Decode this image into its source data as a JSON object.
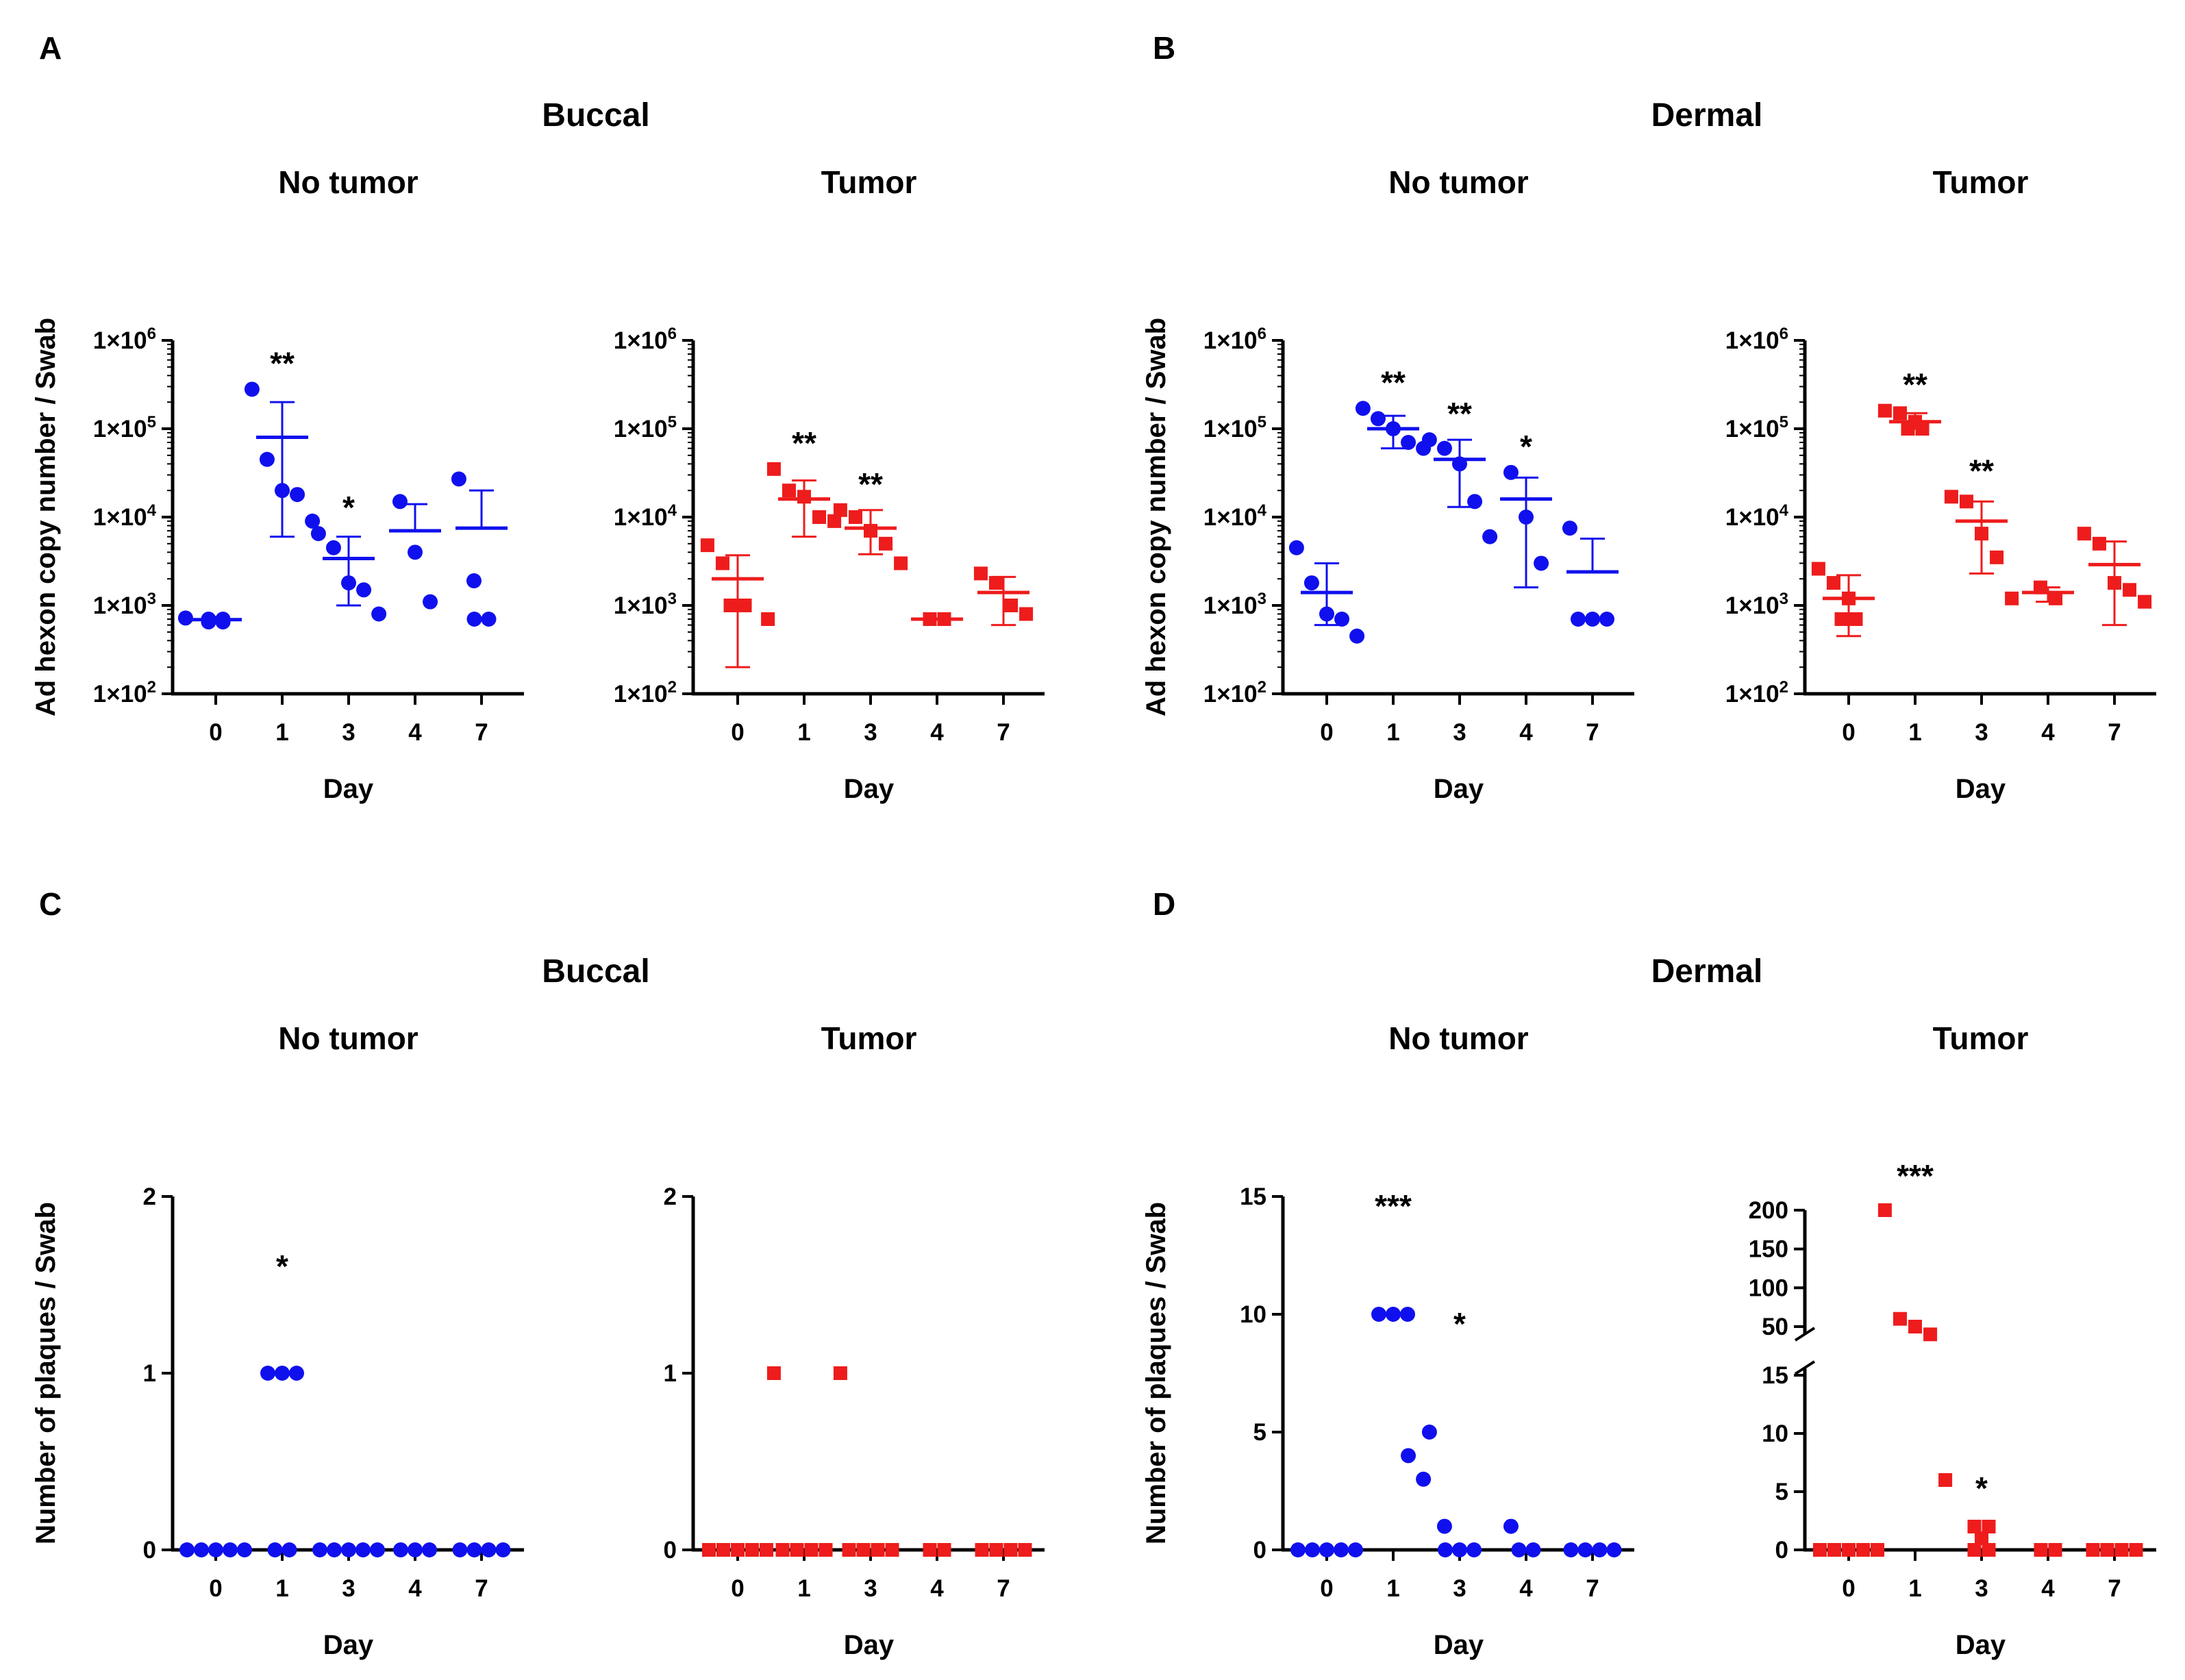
{
  "colors": {
    "no_tumor": "#1010ee",
    "tumor": "#ee1c1c"
  },
  "panel_labels": [
    "A",
    "B",
    "C",
    "D"
  ],
  "group_titles": {
    "A": "Buccal",
    "B": "Dermal",
    "C": "Buccal",
    "D": "Dermal"
  },
  "chart_data": [
    {
      "id": "A1",
      "panel": "A",
      "group": "Buccal",
      "type": "scatter",
      "title": "No tumor",
      "yscale": "log",
      "ylim": [
        100,
        1000000
      ],
      "ylabel": "Ad hexon copy number / Swab",
      "xlabel": "Day",
      "marker": "circle",
      "color": "#1010ee",
      "categories": [
        "0",
        "1",
        "3",
        "4",
        "7"
      ],
      "series": [
        {
          "day": "0",
          "points": [
            650,
            700,
            720,
            700,
            650
          ],
          "mean": 690,
          "err": [
            640,
            740
          ],
          "sig": ""
        },
        {
          "day": "1",
          "points": [
            280000,
            45000,
            20000,
            18000,
            9000
          ],
          "mean": 80000,
          "err": [
            6000,
            200000
          ],
          "sig": "**"
        },
        {
          "day": "3",
          "points": [
            6500,
            4500,
            1800,
            1500,
            800
          ],
          "mean": 3400,
          "err": [
            1000,
            6000
          ],
          "sig": "*"
        },
        {
          "day": "4",
          "points": [
            15000,
            4000,
            1100
          ],
          "mean": 7000,
          "err": [
            7000,
            14000
          ],
          "sig": ""
        },
        {
          "day": "7",
          "points": [
            27000,
            1900,
            700,
            700
          ],
          "mean": 7500,
          "err": [
            7500,
            20000
          ],
          "sig": ""
        }
      ]
    },
    {
      "id": "A2",
      "panel": "A",
      "group": "Buccal",
      "type": "scatter",
      "title": "Tumor",
      "yscale": "log",
      "ylim": [
        100,
        1000000
      ],
      "ylabel": "",
      "xlabel": "Day",
      "marker": "square",
      "color": "#ee1c1c",
      "categories": [
        "0",
        "1",
        "3",
        "4",
        "7"
      ],
      "series": [
        {
          "day": "0",
          "points": [
            4800,
            3000,
            1000,
            1000,
            700
          ],
          "mean": 2000,
          "err": [
            200,
            3700
          ],
          "sig": ""
        },
        {
          "day": "1",
          "points": [
            35000,
            20000,
            17000,
            10000,
            9000
          ],
          "mean": 16000,
          "err": [
            6000,
            26000
          ],
          "sig": "**"
        },
        {
          "day": "3",
          "points": [
            12000,
            10000,
            7000,
            5000,
            3000
          ],
          "mean": 7500,
          "err": [
            3800,
            12000
          ],
          "sig": "**"
        },
        {
          "day": "4",
          "points": [
            700,
            700
          ],
          "mean": 700,
          "err": [
            700,
            700
          ],
          "sig": ""
        },
        {
          "day": "7",
          "points": [
            2300,
            1800,
            1000,
            800
          ],
          "mean": 1400,
          "err": [
            600,
            2100
          ],
          "sig": ""
        }
      ]
    },
    {
      "id": "B1",
      "panel": "B",
      "group": "Dermal",
      "type": "scatter",
      "title": "No tumor",
      "yscale": "log",
      "ylim": [
        100,
        1000000
      ],
      "ylabel": "Ad hexon copy number / Swab",
      "xlabel": "Day",
      "marker": "circle",
      "color": "#1010ee",
      "categories": [
        "0",
        "1",
        "3",
        "4",
        "7"
      ],
      "series": [
        {
          "day": "0",
          "points": [
            4500,
            1800,
            800,
            700,
            450
          ],
          "mean": 1400,
          "err": [
            600,
            3000
          ],
          "sig": ""
        },
        {
          "day": "1",
          "points": [
            170000,
            130000,
            100000,
            70000,
            60000
          ],
          "mean": 100000,
          "err": [
            60000,
            140000
          ],
          "sig": "**"
        },
        {
          "day": "3",
          "points": [
            75000,
            60000,
            40000,
            15000,
            6000
          ],
          "mean": 45000,
          "err": [
            13000,
            75000
          ],
          "sig": "**"
        },
        {
          "day": "4",
          "points": [
            32000,
            10000,
            3000
          ],
          "mean": 16000,
          "err": [
            1600,
            28000
          ],
          "sig": "*"
        },
        {
          "day": "7",
          "points": [
            7500,
            700,
            700,
            700
          ],
          "mean": 2400,
          "err": [
            2400,
            5700
          ],
          "sig": ""
        }
      ]
    },
    {
      "id": "B2",
      "panel": "B",
      "group": "Dermal",
      "type": "scatter",
      "title": "Tumor",
      "yscale": "log",
      "ylim": [
        100,
        1000000
      ],
      "ylabel": "",
      "xlabel": "Day",
      "marker": "square",
      "color": "#ee1c1c",
      "categories": [
        "0",
        "1",
        "3",
        "4",
        "7"
      ],
      "series": [
        {
          "day": "0",
          "points": [
            2600,
            1800,
            1200,
            700,
            700
          ],
          "mean": 1200,
          "err": [
            450,
            2200
          ],
          "sig": ""
        },
        {
          "day": "1",
          "points": [
            160000,
            150000,
            120000,
            100000,
            100000
          ],
          "mean": 120000,
          "err": [
            100000,
            150000
          ],
          "sig": "**"
        },
        {
          "day": "3",
          "points": [
            17000,
            15000,
            6500,
            3500,
            1200
          ],
          "mean": 9000,
          "err": [
            2300,
            15000
          ],
          "sig": "**"
        },
        {
          "day": "4",
          "points": [
            1600,
            1200
          ],
          "mean": 1400,
          "err": [
            1100,
            1600
          ],
          "sig": ""
        },
        {
          "day": "7",
          "points": [
            6500,
            5000,
            1800,
            1500,
            1100
          ],
          "mean": 2900,
          "err": [
            600,
            5300
          ],
          "sig": ""
        }
      ]
    },
    {
      "id": "C1",
      "panel": "C",
      "group": "Buccal",
      "type": "scatter",
      "title": "No tumor",
      "yscale": "linear",
      "ylim": [
        0,
        2
      ],
      "yticks": [
        0,
        1,
        2
      ],
      "ylabel": "Number of plaques / Swab",
      "xlabel": "Day",
      "marker": "circle",
      "color": "#1010ee",
      "categories": [
        "0",
        "1",
        "3",
        "4",
        "7"
      ],
      "series": [
        {
          "day": "0",
          "points": [
            0,
            0,
            0,
            0,
            0
          ],
          "sig": ""
        },
        {
          "day": "1",
          "points": [
            1,
            1,
            1,
            0,
            0
          ],
          "sig": "*"
        },
        {
          "day": "3",
          "points": [
            0,
            0,
            0,
            0,
            0
          ],
          "sig": ""
        },
        {
          "day": "4",
          "points": [
            0,
            0,
            0
          ],
          "sig": ""
        },
        {
          "day": "7",
          "points": [
            0,
            0,
            0,
            0
          ],
          "sig": ""
        }
      ]
    },
    {
      "id": "C2",
      "panel": "C",
      "group": "Buccal",
      "type": "scatter",
      "title": "Tumor",
      "yscale": "linear",
      "ylim": [
        0,
        2
      ],
      "yticks": [
        0,
        1,
        2
      ],
      "ylabel": "",
      "xlabel": "Day",
      "marker": "square",
      "color": "#ee1c1c",
      "categories": [
        "0",
        "1",
        "3",
        "4",
        "7"
      ],
      "series": [
        {
          "day": "0",
          "points": [
            0,
            0,
            0,
            0,
            0
          ],
          "sig": ""
        },
        {
          "day": "1",
          "points": [
            1,
            0,
            0,
            0,
            0
          ],
          "sig": ""
        },
        {
          "day": "3",
          "points": [
            1,
            0,
            0,
            0,
            0
          ],
          "sig": ""
        },
        {
          "day": "4",
          "points": [
            0,
            0
          ],
          "sig": ""
        },
        {
          "day": "7",
          "points": [
            0,
            0,
            0,
            0
          ],
          "sig": ""
        }
      ]
    },
    {
      "id": "D1",
      "panel": "D",
      "group": "Dermal",
      "type": "scatter",
      "title": "No tumor",
      "yscale": "linear",
      "ylim": [
        0,
        15
      ],
      "yticks": [
        0,
        5,
        10,
        15
      ],
      "ylabel": "Number of plaques / Swab",
      "xlabel": "Day",
      "marker": "circle",
      "color": "#1010ee",
      "categories": [
        "0",
        "1",
        "3",
        "4",
        "7"
      ],
      "series": [
        {
          "day": "0",
          "points": [
            0,
            0,
            0,
            0,
            0
          ],
          "sig": ""
        },
        {
          "day": "1",
          "points": [
            10,
            10,
            10,
            4,
            3
          ],
          "sig": "***"
        },
        {
          "day": "3",
          "points": [
            5,
            1,
            0,
            0,
            0
          ],
          "sig": "*"
        },
        {
          "day": "4",
          "points": [
            1,
            0,
            0
          ],
          "sig": ""
        },
        {
          "day": "7",
          "points": [
            0,
            0,
            0,
            0
          ],
          "sig": ""
        }
      ]
    },
    {
      "id": "D2",
      "panel": "D",
      "group": "Dermal",
      "type": "scatter",
      "title": "Tumor",
      "yscale": "broken",
      "ylim_lower": [
        0,
        15
      ],
      "ylim_upper": [
        50,
        200
      ],
      "yticks_lower": [
        0,
        5,
        10,
        15
      ],
      "yticks_upper": [
        50,
        100,
        150,
        200
      ],
      "ylabel": "",
      "xlabel": "Day",
      "marker": "square",
      "color": "#ee1c1c",
      "categories": [
        "0",
        "1",
        "3",
        "4",
        "7"
      ],
      "series": [
        {
          "day": "0",
          "points": [
            0,
            0,
            0,
            0,
            0
          ],
          "sig": ""
        },
        {
          "day": "1",
          "points": [
            200,
            60,
            50,
            40,
            6
          ],
          "sig": "***"
        },
        {
          "day": "3",
          "points": [
            2,
            2,
            1,
            0,
            0
          ],
          "sig": "*"
        },
        {
          "day": "4",
          "points": [
            0,
            0
          ],
          "sig": ""
        },
        {
          "day": "7",
          "points": [
            0,
            0,
            0,
            0
          ],
          "sig": ""
        }
      ]
    }
  ]
}
